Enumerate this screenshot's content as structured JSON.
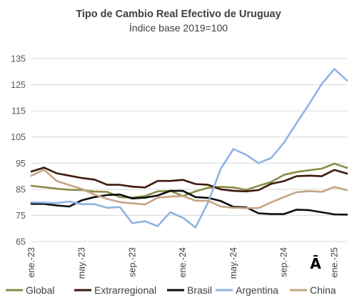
{
  "chart_data": {
    "type": "line",
    "title": "Tipo de Cambio Real Efectivo de Uruguay",
    "subtitle": "Índice base 2019=100",
    "ylim": [
      65,
      135
    ],
    "yticks": [
      65,
      75,
      85,
      95,
      105,
      115,
      125,
      135
    ],
    "grid": true,
    "legend_position": "bottom",
    "x_tick_labels": [
      "ene.-23",
      "may.-23",
      "sep.-23",
      "ene.-24",
      "may.-24",
      "sep.-24",
      "ene.-25"
    ],
    "x_tick_positions": [
      1,
      5,
      9,
      13,
      17,
      21,
      25
    ],
    "x": [
      1,
      2,
      3,
      4,
      5,
      6,
      7,
      8,
      9,
      10,
      11,
      12,
      13,
      14,
      15,
      16,
      17,
      18,
      19,
      20,
      21,
      22,
      23,
      24,
      25,
      26
    ],
    "annotation": "Ā",
    "series": [
      {
        "name": "Global",
        "color": "#8c8c45",
        "values": [
          86.3,
          85.8,
          85.2,
          84.8,
          84.7,
          84.1,
          84.0,
          82.0,
          81.8,
          82.4,
          84.2,
          84.4,
          82.4,
          84.2,
          85.6,
          85.9,
          85.7,
          84.8,
          86.3,
          87.8,
          90.5,
          91.6,
          92.3,
          92.9,
          94.8,
          93.2
        ]
      },
      {
        "name": "Extrarregional",
        "color": "#3b1a0d",
        "values": [
          91.8,
          93.3,
          91.1,
          90.2,
          89.3,
          88.7,
          86.7,
          86.7,
          86.0,
          85.7,
          88.2,
          88.2,
          88.6,
          87.0,
          86.7,
          85.0,
          84.4,
          84.2,
          84.7,
          87.1,
          88.1,
          90.0,
          90.2,
          90.0,
          92.4,
          91.0
        ]
      },
      {
        "name": "Brasil",
        "color": "#0d0d0d",
        "values": [
          79.4,
          79.4,
          78.8,
          78.4,
          80.8,
          82.0,
          82.8,
          83.0,
          81.5,
          81.8,
          82.6,
          84.4,
          84.4,
          82.0,
          81.7,
          80.5,
          78.3,
          78.1,
          75.8,
          75.5,
          75.5,
          77.2,
          77.0,
          76.2,
          75.4,
          75.3
        ]
      },
      {
        "name": "Argentina",
        "color": "#8fb4e3",
        "values": [
          80.0,
          79.9,
          79.7,
          80.3,
          79.3,
          79.3,
          77.9,
          78.2,
          72.0,
          72.8,
          70.9,
          76.2,
          74.1,
          70.4,
          80.0,
          92.9,
          100.4,
          98.2,
          95.0,
          97.0,
          102.8,
          110.3,
          117.6,
          125.3,
          131.0,
          126.6
        ]
      },
      {
        "name": "China",
        "color": "#c4a484",
        "values": [
          90.2,
          92.5,
          88.2,
          86.6,
          85.1,
          83.0,
          81.3,
          80.1,
          79.6,
          79.2,
          81.8,
          82.2,
          82.4,
          80.6,
          80.6,
          78.4,
          77.9,
          77.8,
          77.8,
          80.0,
          82.0,
          83.9,
          84.3,
          84.0,
          85.9,
          84.7
        ]
      }
    ]
  }
}
